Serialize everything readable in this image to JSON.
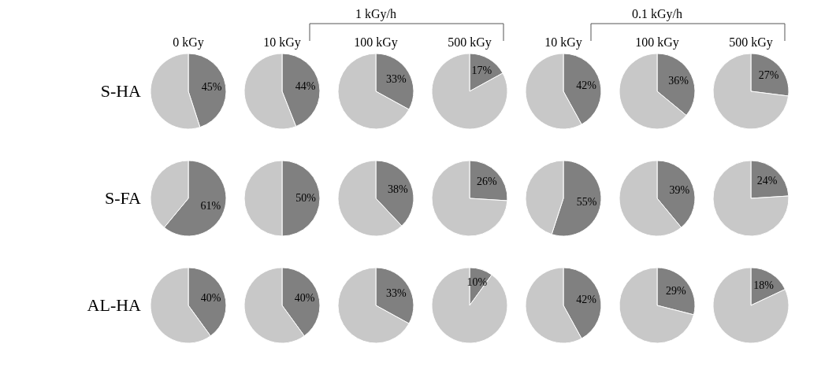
{
  "chart_data": [
    {
      "type": "pie",
      "title": "0 kGy",
      "ylabel": "S-HA",
      "categories": [
        null,
        null
      ],
      "values": [
        45,
        55
      ],
      "colors": [
        "#808080",
        "#c8c8c8"
      ],
      "value_labels": [
        "45%",
        null
      ]
    },
    {
      "type": "pie",
      "title": "10 kGy",
      "categories": [
        null,
        null
      ],
      "values": [
        44,
        56
      ],
      "colors": [
        "#808080",
        "#c8c8c8"
      ],
      "value_labels": [
        "44%",
        null
      ]
    },
    {
      "type": "pie",
      "title": "100 kGy",
      "annotations": [
        "1 kGy/h"
      ],
      "categories": [
        null,
        null
      ],
      "values": [
        33,
        67
      ],
      "colors": [
        "#808080",
        "#c8c8c8"
      ],
      "value_labels": [
        "33%",
        null
      ]
    },
    {
      "type": "pie",
      "title": "500 kGy",
      "categories": [
        null,
        null
      ],
      "values": [
        17,
        83
      ],
      "colors": [
        "#808080",
        "#c8c8c8"
      ],
      "value_labels": [
        "17%",
        null
      ]
    },
    {
      "type": "pie",
      "title": "10 kGy",
      "categories": [
        null,
        null
      ],
      "values": [
        42,
        58
      ],
      "colors": [
        "#808080",
        "#c8c8c8"
      ],
      "value_labels": [
        "42%",
        null
      ]
    },
    {
      "type": "pie",
      "title": "100 kGy",
      "annotations": [
        "0.1 kGy/h"
      ],
      "categories": [
        null,
        null
      ],
      "values": [
        36,
        64
      ],
      "colors": [
        "#808080",
        "#c8c8c8"
      ],
      "value_labels": [
        "36%",
        null
      ]
    },
    {
      "type": "pie",
      "title": "500 kGy",
      "categories": [
        null,
        null
      ],
      "values": [
        27,
        73
      ],
      "colors": [
        "#808080",
        "#c8c8c8"
      ],
      "value_labels": [
        "27%",
        null
      ]
    },
    {
      "type": "pie",
      "ylabel": "S-FA",
      "categories": [
        null,
        null
      ],
      "values": [
        61,
        39
      ],
      "colors": [
        "#808080",
        "#c8c8c8"
      ],
      "value_labels": [
        "61%",
        null
      ]
    },
    {
      "type": "pie",
      "categories": [
        null,
        null
      ],
      "values": [
        50,
        50
      ],
      "colors": [
        "#808080",
        "#c8c8c8"
      ],
      "value_labels": [
        "50%",
        null
      ]
    },
    {
      "type": "pie",
      "categories": [
        null,
        null
      ],
      "values": [
        38,
        62
      ],
      "colors": [
        "#808080",
        "#c8c8c8"
      ],
      "value_labels": [
        "38%",
        null
      ]
    },
    {
      "type": "pie",
      "categories": [
        null,
        null
      ],
      "values": [
        26,
        74
      ],
      "colors": [
        "#808080",
        "#c8c8c8"
      ],
      "value_labels": [
        "26%",
        null
      ]
    },
    {
      "type": "pie",
      "categories": [
        null,
        null
      ],
      "values": [
        55,
        45
      ],
      "colors": [
        "#808080",
        "#c8c8c8"
      ],
      "value_labels": [
        "55%",
        null
      ]
    },
    {
      "type": "pie",
      "categories": [
        null,
        null
      ],
      "values": [
        39,
        61
      ],
      "colors": [
        "#808080",
        "#c8c8c8"
      ],
      "value_labels": [
        "39%",
        null
      ]
    },
    {
      "type": "pie",
      "categories": [
        null,
        null
      ],
      "values": [
        24,
        76
      ],
      "colors": [
        "#808080",
        "#c8c8c8"
      ],
      "value_labels": [
        "24%",
        null
      ]
    },
    {
      "type": "pie",
      "ylabel": "AL-HA",
      "categories": [
        null,
        null
      ],
      "values": [
        40,
        60
      ],
      "colors": [
        "#808080",
        "#c8c8c8"
      ],
      "value_labels": [
        "40%",
        null
      ]
    },
    {
      "type": "pie",
      "categories": [
        null,
        null
      ],
      "values": [
        40,
        60
      ],
      "colors": [
        "#808080",
        "#c8c8c8"
      ],
      "value_labels": [
        "40%",
        null
      ]
    },
    {
      "type": "pie",
      "categories": [
        null,
        null
      ],
      "values": [
        33,
        67
      ],
      "colors": [
        "#808080",
        "#c8c8c8"
      ],
      "value_labels": [
        "33%",
        null
      ]
    },
    {
      "type": "pie",
      "categories": [
        null,
        null
      ],
      "values": [
        10,
        90
      ],
      "colors": [
        "#808080",
        "#c8c8c8"
      ],
      "value_labels": [
        "10%",
        null
      ]
    },
    {
      "type": "pie",
      "categories": [
        null,
        null
      ],
      "values": [
        42,
        58
      ],
      "colors": [
        "#808080",
        "#c8c8c8"
      ],
      "value_labels": [
        "42%",
        null
      ]
    },
    {
      "type": "pie",
      "categories": [
        null,
        null
      ],
      "values": [
        29,
        71
      ],
      "colors": [
        "#808080",
        "#c8c8c8"
      ],
      "value_labels": [
        "29%",
        null
      ]
    },
    {
      "type": "pie",
      "categories": [
        null,
        null
      ],
      "values": [
        18,
        82
      ],
      "colors": [
        "#808080",
        "#c8c8c8"
      ],
      "value_labels": [
        "18%",
        null
      ]
    }
  ]
}
